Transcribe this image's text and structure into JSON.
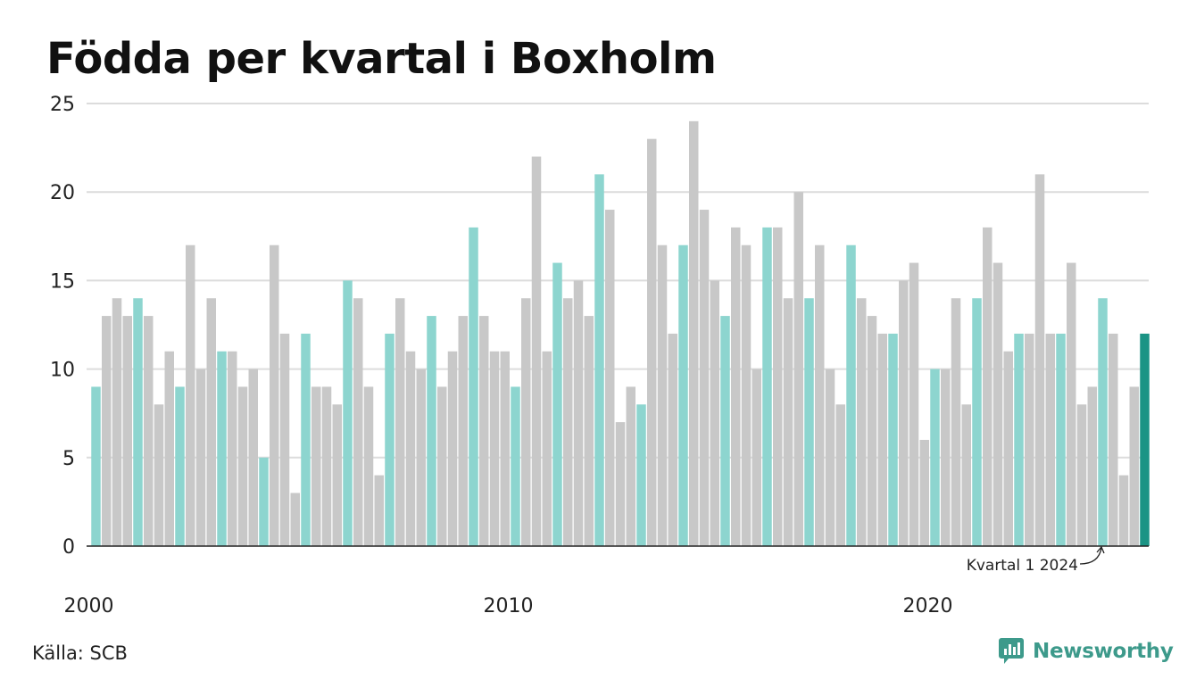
{
  "title": "Födda per kvartal i Boxholm",
  "source": "Källa: SCB",
  "brand": {
    "name": "Newsworthy",
    "icon": "newsworthy-logo-icon"
  },
  "colors": {
    "q1": "#8dd5cf",
    "other": "#c8c8c8",
    "highlight": "#1b9485",
    "grid": "#dcdcdc",
    "axis": "#222222"
  },
  "chart_data": {
    "type": "bar",
    "title": "Födda per kvartal i Boxholm",
    "xlabel": "",
    "ylabel": "",
    "ylim": [
      0,
      25
    ],
    "yticks": [
      0,
      5,
      10,
      15,
      20,
      25
    ],
    "x_tick_labels": [
      "2000",
      "2010",
      "2020"
    ],
    "grid": true,
    "start": "Kvartal 1 2000",
    "end": "Kvartal 1 2024",
    "annotation": "Kvartal 1 2024",
    "values": [
      9,
      13,
      14,
      13,
      14,
      13,
      8,
      11,
      9,
      17,
      10,
      14,
      11,
      11,
      9,
      10,
      5,
      17,
      12,
      3,
      12,
      9,
      9,
      8,
      15,
      14,
      9,
      4,
      12,
      14,
      11,
      10,
      13,
      9,
      11,
      13,
      18,
      13,
      11,
      11,
      9,
      14,
      22,
      11,
      16,
      14,
      15,
      13,
      21,
      19,
      7,
      9,
      8,
      23,
      17,
      12,
      17,
      24,
      19,
      15,
      13,
      18,
      17,
      10,
      18,
      18,
      14,
      20,
      14,
      17,
      10,
      8,
      17,
      14,
      13,
      12,
      12,
      15,
      16,
      6,
      10,
      10,
      14,
      8,
      14,
      18,
      16,
      11,
      12,
      12,
      21,
      12,
      12,
      16,
      8,
      9,
      14,
      12,
      4,
      9,
      12
    ]
  }
}
